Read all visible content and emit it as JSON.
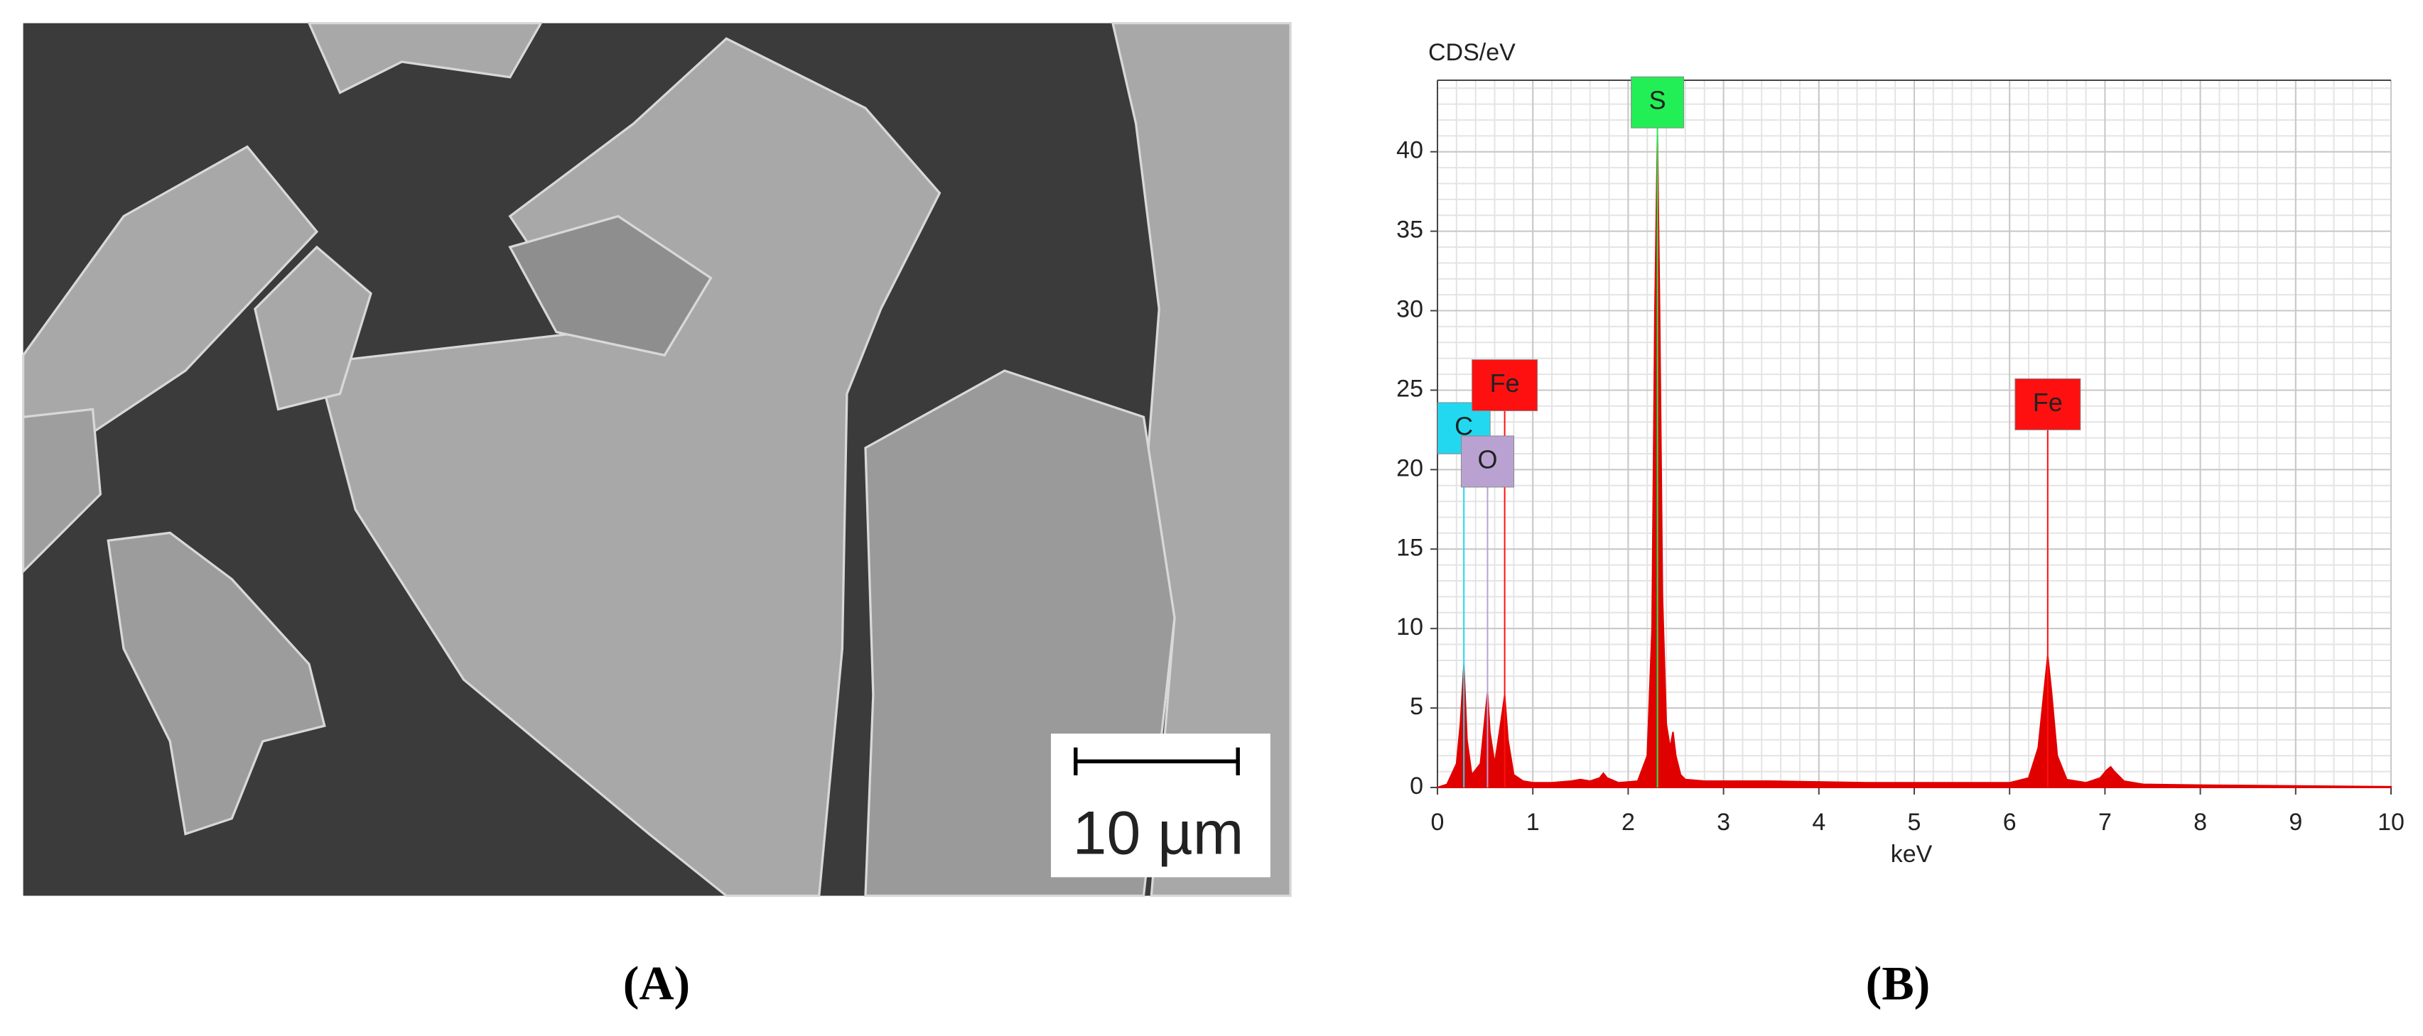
{
  "panel_a": {
    "scale_bar": "10 µm",
    "label": "(A)"
  },
  "panel_b": {
    "label": "(B)"
  },
  "chart_data": {
    "type": "area",
    "y_label": "CDS/eV",
    "x_label": "keV",
    "x": [
      0,
      0.1,
      0.2,
      0.24,
      0.277,
      0.31,
      0.36,
      0.45,
      0.5,
      0.525,
      0.55,
      0.6,
      0.65,
      0.705,
      0.74,
      0.8,
      0.9,
      1.0,
      1.2,
      1.4,
      1.5,
      1.6,
      1.7,
      1.74,
      1.78,
      1.9,
      2.1,
      2.2,
      2.25,
      2.28,
      2.307,
      2.33,
      2.36,
      2.4,
      2.44,
      2.47,
      2.5,
      2.55,
      2.6,
      2.8,
      3.0,
      3.5,
      4.0,
      4.5,
      5.0,
      5.5,
      6.0,
      6.2,
      6.3,
      6.36,
      6.4,
      6.44,
      6.5,
      6.6,
      6.8,
      6.95,
      7.02,
      7.06,
      7.1,
      7.2,
      7.4,
      8.0,
      9.0,
      10.0
    ],
    "values": [
      0,
      0.2,
      1.5,
      4,
      7.7,
      3,
      0.8,
      1.5,
      4.5,
      6,
      3.5,
      1.5,
      3.5,
      5.8,
      3,
      0.8,
      0.4,
      0.3,
      0.3,
      0.4,
      0.5,
      0.4,
      0.6,
      0.9,
      0.6,
      0.3,
      0.4,
      2,
      10,
      30,
      41,
      30,
      12,
      4,
      2.5,
      3.5,
      2,
      0.8,
      0.5,
      0.4,
      0.4,
      0.4,
      0.35,
      0.3,
      0.3,
      0.3,
      0.3,
      0.6,
      2.5,
      6,
      8.3,
      6,
      2,
      0.5,
      0.3,
      0.6,
      1.1,
      1.3,
      1,
      0.4,
      0.2,
      0.15,
      0.1,
      0.05
    ],
    "color": "#e00000",
    "xlim": [
      0,
      10
    ],
    "xticks": [
      0,
      1,
      2,
      3,
      4,
      5,
      6,
      7,
      8,
      9,
      10
    ],
    "ylim": [
      0,
      44.5
    ],
    "yticks": [
      0,
      5,
      10,
      15,
      20,
      25,
      30,
      35,
      40
    ],
    "grid": true,
    "annotations": [
      {
        "label": "C",
        "x": 0.277,
        "y": 21,
        "color": "#22d8f0"
      },
      {
        "label": "Fe",
        "x": 0.705,
        "y": 23.7,
        "color": "#ff1010"
      },
      {
        "label": "O",
        "x": 0.525,
        "y": 18.9,
        "color": "#b9a2d2"
      },
      {
        "label": "S",
        "x": 2.307,
        "y": 41.5,
        "color": "#22ee55"
      },
      {
        "label": "Fe",
        "x": 6.4,
        "y": 22.5,
        "color": "#ff1010"
      }
    ]
  }
}
